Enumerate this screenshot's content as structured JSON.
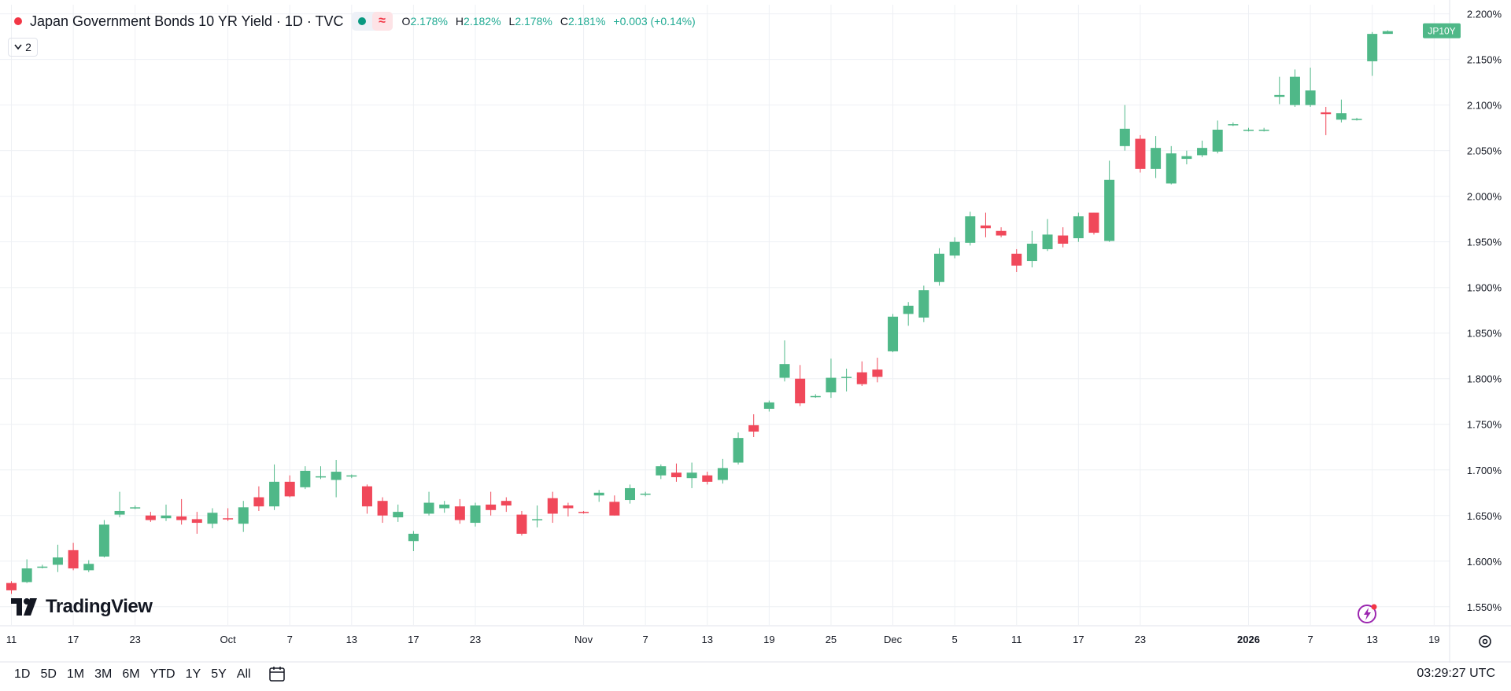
{
  "legend": {
    "title": "Japan Government Bonds 10 YR Yield · 1D · TVC",
    "o_label": "O",
    "o_value": "2.178%",
    "h_label": "H",
    "h_value": "2.182%",
    "l_label": "L",
    "l_value": "2.178%",
    "c_label": "C",
    "c_value": "2.181%",
    "change": "+0.003 (+0.14%)",
    "wave_glyph": "≈",
    "indicator_count": "2"
  },
  "colors": {
    "up": "#4fb888",
    "down": "#f0485a",
    "grid": "#eef0f4",
    "badge": "#4fb888"
  },
  "bottom": {
    "ranges": [
      "1D",
      "5D",
      "1M",
      "3M",
      "6M",
      "YTD",
      "1Y",
      "5Y",
      "All"
    ],
    "clock": "03:29:27 UTC"
  },
  "brand": {
    "logo_text": "TradingView"
  },
  "chart_data": {
    "type": "candlestick",
    "symbol_badge": "JP10Y",
    "ylim": [
      1.53,
      2.21
    ],
    "y_ticks": [
      "1.550%",
      "1.600%",
      "1.650%",
      "1.700%",
      "1.750%",
      "1.800%",
      "1.850%",
      "1.900%",
      "1.950%",
      "2.000%",
      "2.050%",
      "2.100%",
      "2.150%",
      "2.200%"
    ],
    "y_tick_values": [
      1.55,
      1.6,
      1.65,
      1.7,
      1.75,
      1.8,
      1.85,
      1.9,
      1.95,
      2.0,
      2.05,
      2.1,
      2.15,
      2.2
    ],
    "x_ticks": [
      {
        "label": "11",
        "i": 0
      },
      {
        "label": "17",
        "i": 4
      },
      {
        "label": "23",
        "i": 8
      },
      {
        "label": "Oct",
        "i": 14
      },
      {
        "label": "7",
        "i": 18
      },
      {
        "label": "13",
        "i": 22
      },
      {
        "label": "17",
        "i": 26
      },
      {
        "label": "23",
        "i": 30
      },
      {
        "label": "Nov",
        "i": 37
      },
      {
        "label": "7",
        "i": 41
      },
      {
        "label": "13",
        "i": 45
      },
      {
        "label": "19",
        "i": 49
      },
      {
        "label": "25",
        "i": 53
      },
      {
        "label": "Dec",
        "i": 57
      },
      {
        "label": "5",
        "i": 61
      },
      {
        "label": "11",
        "i": 65
      },
      {
        "label": "17",
        "i": 69
      },
      {
        "label": "23",
        "i": 73
      },
      {
        "label": "2026",
        "i": 80,
        "bold": true
      },
      {
        "label": "7",
        "i": 84
      },
      {
        "label": "13",
        "i": 88
      },
      {
        "label": "19",
        "i": 92
      }
    ],
    "candles": [
      [
        1.576,
        1.568,
        1.564,
        1.578
      ],
      [
        1.577,
        1.592,
        1.576,
        1.602
      ],
      [
        1.594,
        1.594,
        1.592,
        1.596
      ],
      [
        1.596,
        1.604,
        1.588,
        1.618
      ],
      [
        1.612,
        1.592,
        1.59,
        1.62
      ],
      [
        1.59,
        1.597,
        1.588,
        1.601
      ],
      [
        1.605,
        1.64,
        1.604,
        1.645
      ],
      [
        1.651,
        1.655,
        1.648,
        1.676
      ],
      [
        1.659,
        1.659,
        1.657,
        1.661
      ],
      [
        1.65,
        1.645,
        1.643,
        1.654
      ],
      [
        1.647,
        1.65,
        1.644,
        1.662
      ],
      [
        1.649,
        1.645,
        1.64,
        1.668
      ],
      [
        1.646,
        1.642,
        1.63,
        1.654
      ],
      [
        1.641,
        1.653,
        1.636,
        1.658
      ],
      [
        1.647,
        1.646,
        1.644,
        1.658
      ],
      [
        1.641,
        1.659,
        1.632,
        1.666
      ],
      [
        1.67,
        1.66,
        1.655,
        1.682
      ],
      [
        1.66,
        1.687,
        1.656,
        1.706
      ],
      [
        1.687,
        1.671,
        1.67,
        1.694
      ],
      [
        1.681,
        1.699,
        1.679,
        1.704
      ],
      [
        1.692,
        1.693,
        1.69,
        1.704
      ],
      [
        1.689,
        1.698,
        1.67,
        1.711
      ],
      [
        1.694,
        1.694,
        1.691,
        1.695
      ],
      [
        1.682,
        1.66,
        1.652,
        1.684
      ],
      [
        1.666,
        1.65,
        1.642,
        1.67
      ],
      [
        1.648,
        1.654,
        1.643,
        1.662
      ],
      [
        1.622,
        1.63,
        1.611,
        1.633
      ],
      [
        1.652,
        1.664,
        1.65,
        1.676
      ],
      [
        1.658,
        1.662,
        1.653,
        1.666
      ],
      [
        1.66,
        1.645,
        1.641,
        1.668
      ],
      [
        1.642,
        1.661,
        1.638,
        1.664
      ],
      [
        1.662,
        1.656,
        1.65,
        1.676
      ],
      [
        1.666,
        1.661,
        1.654,
        1.67
      ],
      [
        1.651,
        1.63,
        1.628,
        1.655
      ],
      [
        1.645,
        1.646,
        1.637,
        1.661
      ],
      [
        1.669,
        1.652,
        1.642,
        1.676
      ],
      [
        1.661,
        1.658,
        1.649,
        1.664
      ],
      [
        1.654,
        1.653,
        1.652,
        1.655
      ],
      [
        1.672,
        1.675,
        1.665,
        1.678
      ],
      [
        1.665,
        1.65,
        1.65,
        1.672
      ],
      [
        1.667,
        1.68,
        1.663,
        1.684
      ],
      [
        1.674,
        1.674,
        1.671,
        1.676
      ],
      [
        1.694,
        1.704,
        1.69,
        1.706
      ],
      [
        1.697,
        1.692,
        1.687,
        1.707
      ],
      [
        1.691,
        1.697,
        1.68,
        1.708
      ],
      [
        1.694,
        1.687,
        1.684,
        1.698
      ],
      [
        1.689,
        1.702,
        1.685,
        1.712
      ],
      [
        1.708,
        1.735,
        1.706,
        1.741
      ],
      [
        1.749,
        1.742,
        1.736,
        1.761
      ],
      [
        1.767,
        1.774,
        1.764,
        1.776
      ],
      [
        1.801,
        1.816,
        1.797,
        1.842
      ],
      [
        1.8,
        1.773,
        1.77,
        1.815
      ],
      [
        1.781,
        1.781,
        1.779,
        1.783
      ],
      [
        1.785,
        1.801,
        1.779,
        1.822
      ],
      [
        1.802,
        1.802,
        1.786,
        1.811
      ],
      [
        1.807,
        1.794,
        1.792,
        1.819
      ],
      [
        1.81,
        1.802,
        1.796,
        1.823
      ],
      [
        1.83,
        1.868,
        1.829,
        1.871
      ],
      [
        1.871,
        1.88,
        1.858,
        1.884
      ],
      [
        1.867,
        1.897,
        1.862,
        1.902
      ],
      [
        1.906,
        1.937,
        1.902,
        1.943
      ],
      [
        1.935,
        1.95,
        1.932,
        1.955
      ],
      [
        1.949,
        1.978,
        1.946,
        1.983
      ],
      [
        1.968,
        1.965,
        1.955,
        1.982
      ],
      [
        1.962,
        1.957,
        1.955,
        1.966
      ],
      [
        1.937,
        1.924,
        1.917,
        1.942
      ],
      [
        1.929,
        1.948,
        1.922,
        1.962
      ],
      [
        1.942,
        1.958,
        1.94,
        1.975
      ],
      [
        1.957,
        1.948,
        1.944,
        1.966
      ],
      [
        1.954,
        1.978,
        1.95,
        1.982
      ],
      [
        1.982,
        1.96,
        1.958,
        1.982
      ],
      [
        1.951,
        2.018,
        1.95,
        2.039
      ],
      [
        2.055,
        2.074,
        2.05,
        2.1
      ],
      [
        2.063,
        2.03,
        2.026,
        2.067
      ],
      [
        2.03,
        2.053,
        2.02,
        2.066
      ],
      [
        2.014,
        2.047,
        2.013,
        2.055
      ],
      [
        2.041,
        2.044,
        2.035,
        2.05
      ],
      [
        2.045,
        2.053,
        2.043,
        2.061
      ],
      [
        2.049,
        2.073,
        2.047,
        2.083
      ],
      [
        2.079,
        2.079,
        2.077,
        2.081
      ],
      [
        2.073,
        2.073,
        2.071,
        2.075
      ],
      [
        2.073,
        2.073,
        2.071,
        2.075
      ],
      [
        2.109,
        2.111,
        2.101,
        2.131
      ],
      [
        2.1,
        2.131,
        2.098,
        2.139
      ],
      [
        2.1,
        2.116,
        2.098,
        2.141
      ],
      [
        2.092,
        2.09,
        2.067,
        2.098
      ],
      [
        2.084,
        2.091,
        2.081,
        2.106
      ],
      [
        2.084,
        2.085,
        2.083,
        2.086
      ],
      [
        2.148,
        2.178,
        2.132,
        2.18
      ],
      [
        2.178,
        2.181,
        2.178,
        2.182
      ]
    ],
    "x_index": [
      0,
      1,
      2,
      3,
      4,
      5,
      6,
      7,
      8,
      9,
      10,
      11,
      12,
      13,
      14,
      15,
      16,
      17,
      18,
      19,
      20,
      21,
      22,
      23,
      24,
      25,
      26,
      27,
      28,
      29,
      30,
      31,
      32,
      33,
      34,
      35,
      36,
      37,
      38,
      39,
      40,
      41,
      42,
      43,
      44,
      45,
      46,
      47,
      48,
      49,
      50,
      51,
      52,
      53,
      54,
      55,
      56,
      57,
      58,
      59,
      60,
      61,
      62,
      63,
      64,
      65,
      66,
      67,
      68,
      69,
      70,
      71,
      72,
      73,
      74,
      75,
      76,
      77,
      78,
      79,
      80,
      81,
      82,
      83,
      84,
      85,
      86,
      87,
      88,
      89
    ],
    "last_value": 2.181
  }
}
